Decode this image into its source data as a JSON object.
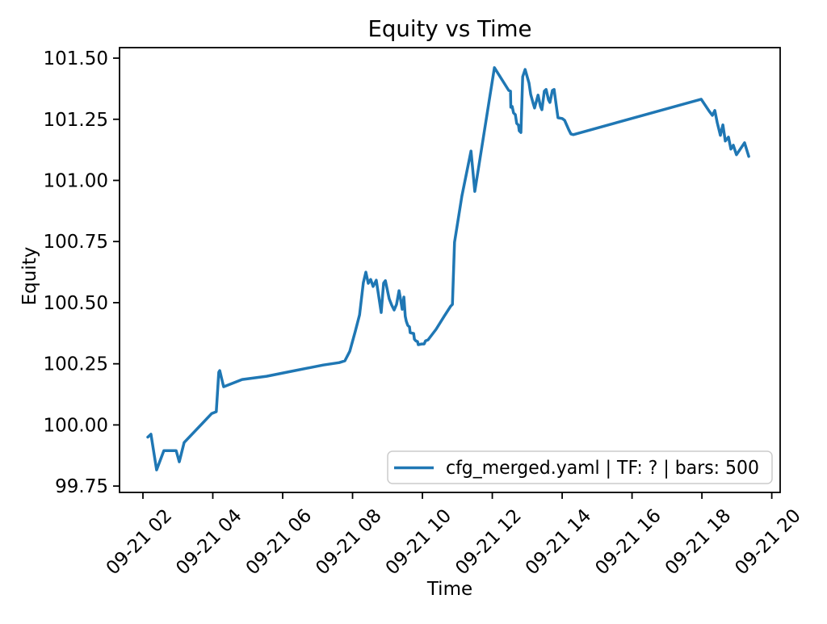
{
  "title": "Equity vs Time",
  "axes": {
    "xlabel": "Time",
    "ylabel": "Equity"
  },
  "legend": {
    "label": "cfg_merged.yaml | TF: ? | bars: 500",
    "line_color": "#1f77b4"
  },
  "chart_data": {
    "type": "line",
    "title": "Equity vs Time",
    "xlabel": "Time",
    "ylabel": "Equity",
    "legend": [
      "cfg_merged.yaml | TF: ? | bars: 500"
    ],
    "line_color": "#1f77b4",
    "x_unit": "hours of 09-21",
    "xlim": [
      1.33,
      20.24
    ],
    "ylim": [
      99.724,
      101.543
    ],
    "x_ticks": [
      2,
      4,
      6,
      8,
      10,
      12,
      14,
      16,
      18,
      20
    ],
    "x_tick_labels": [
      "09-21 02",
      "09-21 04",
      "09-21 06",
      "09-21 08",
      "09-21 10",
      "09-21 12",
      "09-21 14",
      "09-21 16",
      "09-21 18",
      "09-21 20"
    ],
    "y_ticks": [
      99.75,
      100.0,
      100.25,
      100.5,
      100.75,
      101.0,
      101.25,
      101.5
    ],
    "points": [
      [
        2.14,
        99.95
      ],
      [
        2.23,
        99.962
      ],
      [
        2.39,
        99.816
      ],
      [
        2.6,
        99.895
      ],
      [
        2.95,
        99.895
      ],
      [
        3.04,
        99.849
      ],
      [
        3.18,
        99.928
      ],
      [
        3.97,
        100.047
      ],
      [
        4.1,
        100.054
      ],
      [
        4.17,
        100.216
      ],
      [
        4.2,
        100.222
      ],
      [
        4.31,
        100.156
      ],
      [
        4.84,
        100.186
      ],
      [
        5.54,
        100.199
      ],
      [
        6.23,
        100.219
      ],
      [
        7.16,
        100.245
      ],
      [
        7.62,
        100.255
      ],
      [
        7.78,
        100.262
      ],
      [
        7.92,
        100.301
      ],
      [
        8.08,
        100.384
      ],
      [
        8.2,
        100.45
      ],
      [
        8.31,
        100.582
      ],
      [
        8.38,
        100.625
      ],
      [
        8.45,
        100.579
      ],
      [
        8.52,
        100.595
      ],
      [
        8.59,
        100.566
      ],
      [
        8.68,
        100.592
      ],
      [
        8.82,
        100.46
      ],
      [
        8.89,
        100.58
      ],
      [
        8.94,
        100.59
      ],
      [
        9.05,
        100.516
      ],
      [
        9.12,
        100.49
      ],
      [
        9.19,
        100.47
      ],
      [
        9.26,
        100.493
      ],
      [
        9.33,
        100.549
      ],
      [
        9.38,
        100.51
      ],
      [
        9.42,
        100.473
      ],
      [
        9.47,
        100.523
      ],
      [
        9.51,
        100.444
      ],
      [
        9.54,
        100.424
      ],
      [
        9.58,
        100.407
      ],
      [
        9.63,
        100.401
      ],
      [
        9.65,
        100.377
      ],
      [
        9.75,
        100.374
      ],
      [
        9.77,
        100.351
      ],
      [
        9.81,
        100.344
      ],
      [
        9.86,
        100.341
      ],
      [
        9.88,
        100.328
      ],
      [
        9.98,
        100.331
      ],
      [
        10.05,
        100.331
      ],
      [
        10.09,
        100.344
      ],
      [
        10.16,
        100.348
      ],
      [
        10.39,
        100.391
      ],
      [
        10.62,
        100.444
      ],
      [
        10.81,
        100.486
      ],
      [
        10.86,
        100.493
      ],
      [
        10.92,
        100.747
      ],
      [
        11.13,
        100.936
      ],
      [
        11.39,
        101.12
      ],
      [
        11.5,
        100.955
      ],
      [
        12.06,
        101.461
      ],
      [
        12.47,
        101.368
      ],
      [
        12.52,
        101.365
      ],
      [
        12.53,
        101.299
      ],
      [
        12.57,
        101.302
      ],
      [
        12.61,
        101.276
      ],
      [
        12.66,
        101.269
      ],
      [
        12.7,
        101.233
      ],
      [
        12.75,
        101.226
      ],
      [
        12.77,
        101.203
      ],
      [
        12.82,
        101.196
      ],
      [
        12.87,
        101.424
      ],
      [
        12.94,
        101.454
      ],
      [
        13.05,
        101.398
      ],
      [
        13.1,
        101.352
      ],
      [
        13.17,
        101.315
      ],
      [
        13.21,
        101.296
      ],
      [
        13.31,
        101.349
      ],
      [
        13.38,
        101.302
      ],
      [
        13.42,
        101.289
      ],
      [
        13.49,
        101.365
      ],
      [
        13.54,
        101.372
      ],
      [
        13.61,
        101.329
      ],
      [
        13.65,
        101.319
      ],
      [
        13.72,
        101.368
      ],
      [
        13.77,
        101.372
      ],
      [
        13.84,
        101.296
      ],
      [
        13.88,
        101.256
      ],
      [
        14.0,
        101.253
      ],
      [
        14.07,
        101.246
      ],
      [
        14.19,
        101.207
      ],
      [
        14.25,
        101.19
      ],
      [
        14.32,
        101.187
      ],
      [
        17.98,
        101.332
      ],
      [
        18.21,
        101.283
      ],
      [
        18.3,
        101.266
      ],
      [
        18.37,
        101.286
      ],
      [
        18.44,
        101.236
      ],
      [
        18.53,
        101.184
      ],
      [
        18.6,
        101.227
      ],
      [
        18.67,
        101.161
      ],
      [
        18.76,
        101.177
      ],
      [
        18.83,
        101.128
      ],
      [
        18.9,
        101.144
      ],
      [
        18.99,
        101.105
      ],
      [
        19.22,
        101.154
      ],
      [
        19.34,
        101.098
      ]
    ]
  }
}
